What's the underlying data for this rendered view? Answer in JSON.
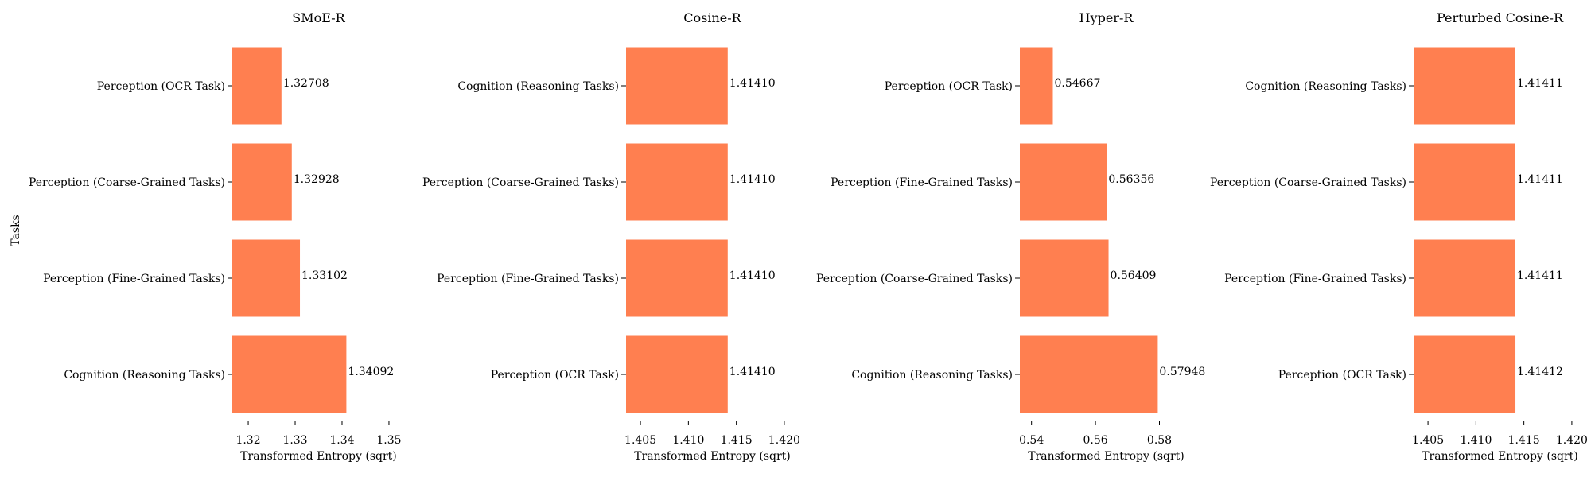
{
  "figure": {
    "ylabel": "Tasks"
  },
  "colors": {
    "bar": "#ff7f50"
  },
  "chart_data": [
    {
      "type": "bar",
      "orientation": "horizontal",
      "title": "SMoE-R",
      "xlabel": "Transformed Entropy (sqrt)",
      "categories": [
        "Perception (OCR Task)",
        "Perception (Coarse-Grained Tasks)",
        "Perception (Fine-Grained Tasks)",
        "Cognition (Reasoning Tasks)"
      ],
      "values": [
        1.32708,
        1.32928,
        1.33102,
        1.34092
      ],
      "value_labels": [
        "1.32708",
        "1.32928",
        "1.33102",
        "1.34092"
      ],
      "xlim": [
        1.3166,
        1.3534
      ],
      "xticks": [
        1.32,
        1.33,
        1.34,
        1.35
      ],
      "xtick_labels": [
        "1.32",
        "1.33",
        "1.34",
        "1.35"
      ]
    },
    {
      "type": "bar",
      "orientation": "horizontal",
      "title": "Cosine-R",
      "xlabel": "Transformed Entropy (sqrt)",
      "categories": [
        "Cognition (Reasoning Tasks)",
        "Perception (Coarse-Grained Tasks)",
        "Perception (Fine-Grained Tasks)",
        "Perception (OCR Task)"
      ],
      "values": [
        1.4141,
        1.4141,
        1.4141,
        1.4141
      ],
      "value_labels": [
        "1.41410",
        "1.41410",
        "1.41410",
        "1.41410"
      ],
      "xlim": [
        1.4035,
        1.4215
      ],
      "xticks": [
        1.405,
        1.41,
        1.415,
        1.42
      ],
      "xtick_labels": [
        "1.405",
        "1.410",
        "1.415",
        "1.420"
      ]
    },
    {
      "type": "bar",
      "orientation": "horizontal",
      "title": "Hyper-R",
      "xlabel": "Transformed Entropy (sqrt)",
      "categories": [
        "Perception (OCR Task)",
        "Perception (Fine-Grained Tasks)",
        "Perception (Coarse-Grained Tasks)",
        "Cognition (Reasoning Tasks)"
      ],
      "values": [
        0.54667,
        0.56356,
        0.56409,
        0.57948
      ],
      "value_labels": [
        "0.54667",
        "0.56356",
        "0.56409",
        "0.57948"
      ],
      "xlim": [
        0.53635,
        0.59032
      ],
      "xticks": [
        0.54,
        0.56,
        0.58
      ],
      "xtick_labels": [
        "0.54",
        "0.56",
        "0.58"
      ]
    },
    {
      "type": "bar",
      "orientation": "horizontal",
      "title": "Perturbed Cosine-R",
      "xlabel": "Transformed Entropy (sqrt)",
      "categories": [
        "Cognition (Reasoning Tasks)",
        "Perception (Coarse-Grained Tasks)",
        "Perception (Fine-Grained Tasks)",
        "Perception (OCR Task)"
      ],
      "values": [
        1.41411,
        1.41411,
        1.41411,
        1.41412
      ],
      "value_labels": [
        "1.41411",
        "1.41411",
        "1.41411",
        "1.41412"
      ],
      "xlim": [
        1.4035,
        1.4215
      ],
      "xticks": [
        1.405,
        1.41,
        1.415,
        1.42
      ],
      "xtick_labels": [
        "1.405",
        "1.410",
        "1.415",
        "1.420"
      ]
    }
  ]
}
